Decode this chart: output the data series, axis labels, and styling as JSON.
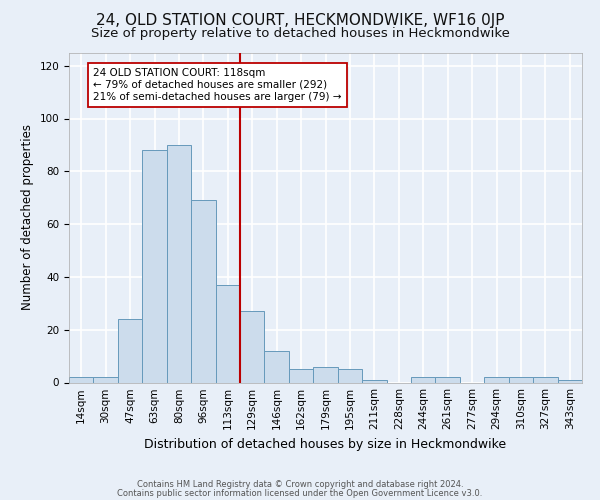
{
  "title": "24, OLD STATION COURT, HECKMONDWIKE, WF16 0JP",
  "subtitle": "Size of property relative to detached houses in Heckmondwike",
  "xlabel": "Distribution of detached houses by size in Heckmondwike",
  "ylabel": "Number of detached properties",
  "bin_labels": [
    "14sqm",
    "30sqm",
    "47sqm",
    "63sqm",
    "80sqm",
    "96sqm",
    "113sqm",
    "129sqm",
    "146sqm",
    "162sqm",
    "179sqm",
    "195sqm",
    "211sqm",
    "228sqm",
    "244sqm",
    "261sqm",
    "277sqm",
    "294sqm",
    "310sqm",
    "327sqm",
    "343sqm"
  ],
  "bar_heights": [
    2,
    2,
    24,
    88,
    90,
    69,
    37,
    27,
    12,
    5,
    6,
    5,
    1,
    0,
    2,
    2,
    0,
    2,
    2,
    2,
    1
  ],
  "bar_color": "#ccdcec",
  "bar_edge_color": "#6699bb",
  "background_color": "#e8eff8",
  "grid_color": "#ffffff",
  "vline_color": "#bb0000",
  "annotation_text": "24 OLD STATION COURT: 118sqm\n← 79% of detached houses are smaller (292)\n21% of semi-detached houses are larger (79) →",
  "annotation_box_color": "#ffffff",
  "annotation_box_edge_color": "#bb0000",
  "ylim": [
    0,
    125
  ],
  "footer_line1": "Contains HM Land Registry data © Crown copyright and database right 2024.",
  "footer_line2": "Contains public sector information licensed under the Open Government Licence v3.0.",
  "title_fontsize": 11,
  "subtitle_fontsize": 9.5,
  "xlabel_fontsize": 9,
  "ylabel_fontsize": 8.5,
  "tick_fontsize": 7.5,
  "footer_fontsize": 6.0
}
